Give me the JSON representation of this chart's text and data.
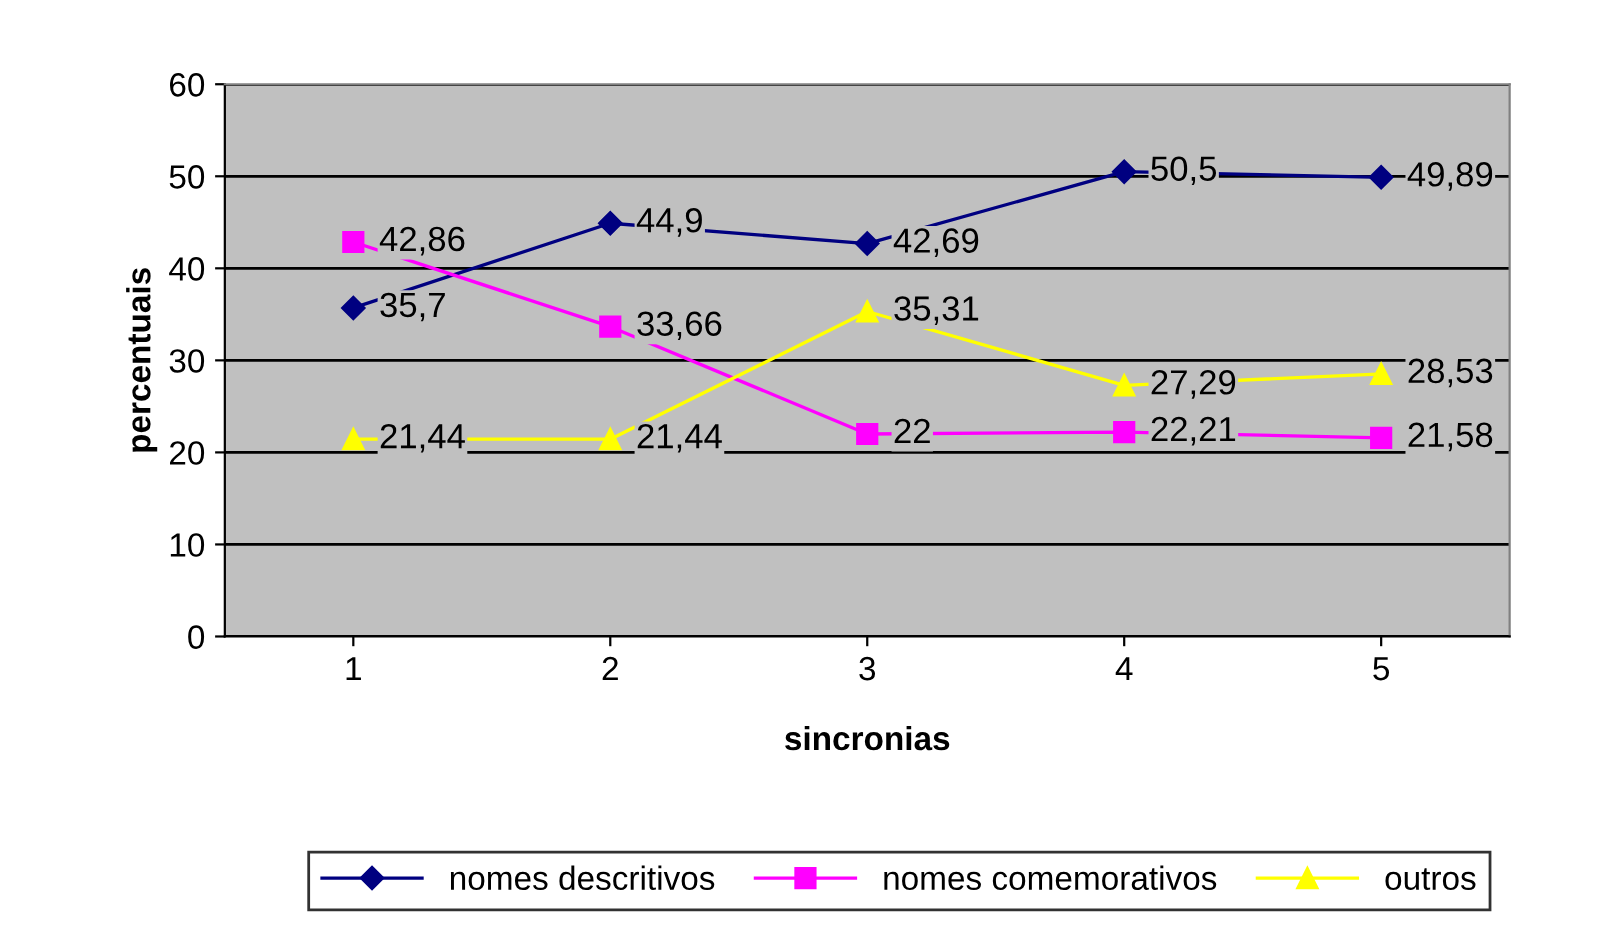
{
  "chart_data": {
    "type": "line",
    "xlabel": "sincronias",
    "ylabel": "percentuais",
    "categories": [
      "1",
      "2",
      "3",
      "4",
      "5"
    ],
    "series": [
      {
        "name": "nomes descritivos",
        "color": "#000080",
        "marker": "diamond",
        "values": [
          35.7,
          44.9,
          42.69,
          50.5,
          49.89
        ],
        "value_labels": [
          "35,7",
          "44,9",
          "42,69",
          "50,5",
          "49,89"
        ]
      },
      {
        "name": "nomes comemorativos",
        "color": "#ff00ff",
        "marker": "square",
        "values": [
          42.86,
          33.66,
          22,
          22.21,
          21.58
        ],
        "value_labels": [
          "42,86",
          "33,66",
          "22",
          "22,21",
          "21,58"
        ]
      },
      {
        "name": "outros",
        "color": "#ffff00",
        "marker": "triangle",
        "values": [
          21.44,
          21.44,
          35.31,
          27.29,
          28.53
        ],
        "value_labels": [
          "21,44",
          "21,44",
          "35,31",
          "27,29",
          "28,53"
        ]
      }
    ],
    "ylim": [
      0,
      60
    ],
    "yticks": [
      0,
      10,
      20,
      30,
      40,
      50,
      60
    ],
    "grid": "y",
    "legend": "bottom"
  }
}
